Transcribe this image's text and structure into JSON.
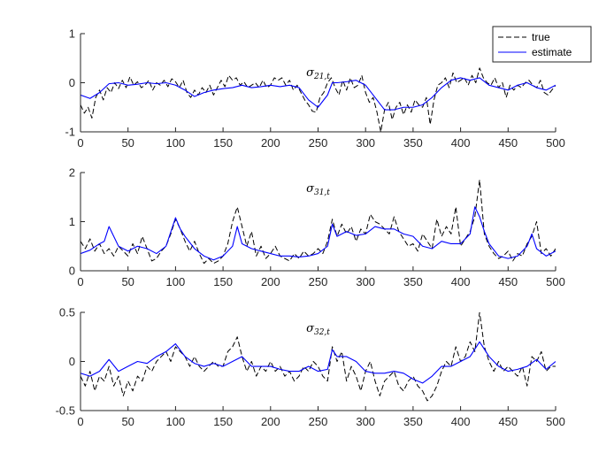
{
  "chart_data": [
    {
      "type": "line",
      "title": "σ21,t",
      "title_main": "σ",
      "title_sub": "21,t",
      "xlim": [
        0,
        500
      ],
      "ylim": [
        -1,
        1
      ],
      "xticks": [
        "0",
        "50",
        "100",
        "150",
        "200",
        "250",
        "300",
        "350",
        "400",
        "450",
        "500"
      ],
      "yticks": [
        "-1",
        "0",
        "1"
      ],
      "legend": {
        "position": "top-right",
        "entries": [
          "true",
          "estimate"
        ]
      },
      "series": [
        {
          "name": "true",
          "color": "#000000",
          "style": "dashed",
          "x": [
            0,
            4,
            8,
            12,
            16,
            20,
            24,
            28,
            32,
            36,
            40,
            44,
            48,
            52,
            56,
            60,
            64,
            68,
            72,
            76,
            80,
            84,
            88,
            92,
            96,
            100,
            104,
            108,
            112,
            116,
            120,
            124,
            128,
            132,
            136,
            140,
            144,
            148,
            152,
            156,
            160,
            164,
            168,
            172,
            176,
            180,
            184,
            188,
            192,
            196,
            200,
            204,
            208,
            212,
            216,
            220,
            224,
            228,
            232,
            236,
            240,
            244,
            248,
            252,
            256,
            260,
            264,
            268,
            272,
            276,
            280,
            284,
            288,
            292,
            296,
            300,
            304,
            308,
            312,
            316,
            320,
            324,
            328,
            332,
            336,
            340,
            344,
            348,
            352,
            356,
            360,
            364,
            368,
            372,
            376,
            380,
            384,
            388,
            392,
            396,
            400,
            404,
            408,
            412,
            416,
            420,
            424,
            428,
            432,
            436,
            440,
            444,
            448,
            452,
            456,
            460,
            464,
            468,
            472,
            476,
            480,
            484,
            488,
            492,
            496,
            500
          ],
          "y": [
            -0.45,
            -0.62,
            -0.5,
            -0.72,
            -0.3,
            -0.15,
            -0.35,
            -0.1,
            -0.2,
            0.0,
            -0.12,
            0.05,
            -0.1,
            0.12,
            -0.05,
            0.02,
            -0.1,
            -0.05,
            0.05,
            -0.15,
            0.0,
            -0.05,
            0.05,
            -0.08,
            0.08,
            0.02,
            -0.1,
            0.05,
            -0.2,
            -0.3,
            -0.15,
            -0.25,
            -0.1,
            -0.2,
            -0.05,
            -0.25,
            -0.1,
            0.05,
            -0.08,
            0.15,
            0.05,
            0.1,
            -0.05,
            0.02,
            -0.1,
            -0.05,
            0.0,
            -0.1,
            0.05,
            -0.1,
            -0.05,
            0.1,
            0.05,
            0.1,
            -0.05,
            0.05,
            -0.15,
            -0.05,
            -0.2,
            -0.35,
            -0.45,
            -0.58,
            -0.6,
            -0.3,
            -0.2,
            0.0,
            0.1,
            -0.1,
            -0.25,
            0.05,
            -0.15,
            0.1,
            -0.1,
            -0.05,
            0.15,
            -0.2,
            -0.4,
            -0.3,
            -0.6,
            -1.0,
            -0.55,
            -0.4,
            -0.75,
            -0.5,
            -0.4,
            -0.65,
            -0.45,
            -0.6,
            -0.35,
            -0.45,
            -0.5,
            -0.3,
            -0.85,
            -0.35,
            -0.05,
            0.0,
            0.1,
            -0.1,
            0.2,
            0.0,
            0.05,
            0.1,
            -0.05,
            0.15,
            0.0,
            0.3,
            0.1,
            0.0,
            -0.05,
            0.1,
            -0.1,
            0.0,
            -0.3,
            -0.05,
            -0.15,
            -0.05,
            -0.1,
            0.0,
            0.05,
            -0.05,
            -0.1,
            0.05,
            -0.2,
            -0.25,
            -0.15,
            -0.05
          ]
        },
        {
          "name": "estimate",
          "color": "#0000ff",
          "style": "solid",
          "x": [
            0,
            10,
            20,
            30,
            40,
            50,
            60,
            70,
            80,
            90,
            100,
            110,
            120,
            130,
            140,
            150,
            160,
            170,
            180,
            190,
            200,
            210,
            220,
            230,
            240,
            250,
            260,
            265,
            270,
            280,
            290,
            300,
            310,
            320,
            330,
            340,
            350,
            360,
            370,
            380,
            390,
            400,
            410,
            420,
            430,
            440,
            450,
            460,
            470,
            480,
            490,
            500
          ],
          "y": [
            -0.25,
            -0.32,
            -0.2,
            -0.02,
            0.0,
            -0.05,
            -0.03,
            0.0,
            -0.02,
            0.0,
            -0.05,
            -0.15,
            -0.28,
            -0.2,
            -0.15,
            -0.12,
            -0.1,
            -0.05,
            -0.1,
            -0.08,
            -0.05,
            -0.08,
            -0.05,
            -0.1,
            -0.35,
            -0.5,
            -0.25,
            0.0,
            0.0,
            0.02,
            0.05,
            -0.05,
            -0.3,
            -0.55,
            -0.55,
            -0.5,
            -0.5,
            -0.45,
            -0.3,
            -0.1,
            0.05,
            0.1,
            0.05,
            0.1,
            -0.05,
            -0.1,
            -0.15,
            -0.05,
            0.0,
            -0.1,
            -0.15,
            -0.05
          ]
        }
      ]
    },
    {
      "type": "line",
      "title": "σ31,t",
      "title_main": "σ",
      "title_sub": "31,t",
      "xlim": [
        0,
        500
      ],
      "ylim": [
        0,
        2
      ],
      "xticks": [
        "0",
        "50",
        "100",
        "150",
        "200",
        "250",
        "300",
        "350",
        "400",
        "450",
        "500"
      ],
      "yticks": [
        "0",
        "1",
        "2"
      ],
      "series": [
        {
          "name": "true",
          "color": "#000000",
          "style": "dashed",
          "x": [
            0,
            5,
            10,
            15,
            20,
            25,
            30,
            35,
            40,
            45,
            50,
            55,
            60,
            65,
            70,
            75,
            80,
            85,
            90,
            95,
            100,
            105,
            110,
            115,
            120,
            125,
            130,
            135,
            140,
            145,
            150,
            155,
            160,
            165,
            170,
            175,
            180,
            185,
            190,
            195,
            200,
            205,
            210,
            215,
            220,
            225,
            230,
            235,
            240,
            245,
            250,
            255,
            260,
            265,
            270,
            275,
            280,
            285,
            290,
            295,
            300,
            305,
            310,
            315,
            320,
            325,
            330,
            335,
            340,
            345,
            350,
            355,
            360,
            365,
            370,
            375,
            380,
            385,
            390,
            395,
            400,
            405,
            410,
            415,
            420,
            425,
            430,
            435,
            440,
            445,
            450,
            455,
            460,
            465,
            470,
            475,
            480,
            485,
            490,
            495,
            500
          ],
          "y": [
            0.6,
            0.45,
            0.65,
            0.4,
            0.55,
            0.35,
            0.45,
            0.3,
            0.5,
            0.4,
            0.3,
            0.55,
            0.35,
            0.7,
            0.45,
            0.2,
            0.25,
            0.4,
            0.5,
            0.75,
            1.05,
            0.85,
            0.6,
            0.4,
            0.6,
            0.35,
            0.15,
            0.25,
            0.15,
            0.2,
            0.3,
            0.55,
            1.0,
            1.3,
            0.9,
            0.5,
            0.8,
            0.3,
            0.5,
            0.25,
            0.35,
            0.5,
            0.3,
            0.25,
            0.2,
            0.35,
            0.25,
            0.4,
            0.3,
            0.35,
            0.45,
            0.35,
            0.6,
            1.05,
            0.7,
            0.95,
            0.75,
            0.9,
            0.6,
            0.85,
            0.75,
            1.15,
            1.0,
            0.95,
            0.85,
            0.75,
            1.1,
            0.8,
            0.65,
            0.5,
            0.55,
            0.4,
            0.75,
            0.6,
            0.45,
            1.05,
            0.7,
            0.9,
            0.75,
            1.3,
            0.5,
            0.65,
            0.8,
            1.1,
            1.85,
            0.75,
            0.5,
            0.35,
            0.25,
            0.3,
            0.4,
            0.2,
            0.35,
            0.3,
            0.55,
            0.7,
            1.0,
            0.35,
            0.45,
            0.3,
            0.45
          ]
        },
        {
          "name": "estimate",
          "color": "#0000ff",
          "style": "solid",
          "x": [
            0,
            10,
            20,
            25,
            30,
            40,
            50,
            60,
            70,
            80,
            90,
            100,
            105,
            110,
            120,
            130,
            140,
            150,
            160,
            165,
            170,
            180,
            190,
            200,
            210,
            220,
            230,
            240,
            250,
            260,
            265,
            270,
            280,
            290,
            300,
            310,
            320,
            330,
            340,
            350,
            360,
            370,
            380,
            390,
            400,
            410,
            415,
            420,
            425,
            430,
            440,
            450,
            460,
            470,
            475,
            480,
            490,
            500
          ],
          "y": [
            0.35,
            0.42,
            0.55,
            0.6,
            0.9,
            0.5,
            0.4,
            0.5,
            0.45,
            0.35,
            0.5,
            1.08,
            0.85,
            0.7,
            0.45,
            0.3,
            0.22,
            0.3,
            0.5,
            0.9,
            0.55,
            0.45,
            0.4,
            0.35,
            0.3,
            0.3,
            0.28,
            0.3,
            0.35,
            0.5,
            0.95,
            0.7,
            0.8,
            0.72,
            0.75,
            0.9,
            0.85,
            0.85,
            0.75,
            0.7,
            0.5,
            0.45,
            0.6,
            0.55,
            0.55,
            0.75,
            1.3,
            1.1,
            0.8,
            0.55,
            0.3,
            0.25,
            0.3,
            0.5,
            0.75,
            0.45,
            0.3,
            0.4
          ]
        }
      ]
    },
    {
      "type": "line",
      "title": "σ32,t",
      "title_main": "σ",
      "title_sub": "32,t",
      "xlim": [
        0,
        500
      ],
      "ylim": [
        -0.5,
        0.5
      ],
      "xticks": [
        "0",
        "50",
        "100",
        "150",
        "200",
        "250",
        "300",
        "350",
        "400",
        "450",
        "500"
      ],
      "yticks": [
        "-0.5",
        "0",
        "0.5"
      ],
      "series": [
        {
          "name": "true",
          "color": "#000000",
          "style": "dashed",
          "x": [
            0,
            5,
            10,
            15,
            20,
            25,
            30,
            35,
            40,
            45,
            50,
            55,
            60,
            65,
            70,
            75,
            80,
            85,
            90,
            95,
            100,
            105,
            110,
            115,
            120,
            125,
            130,
            135,
            140,
            145,
            150,
            155,
            160,
            165,
            170,
            175,
            180,
            185,
            190,
            195,
            200,
            205,
            210,
            215,
            220,
            225,
            230,
            235,
            240,
            245,
            250,
            255,
            260,
            265,
            270,
            275,
            280,
            285,
            290,
            295,
            300,
            305,
            310,
            315,
            320,
            325,
            330,
            335,
            340,
            345,
            350,
            355,
            360,
            365,
            370,
            375,
            380,
            385,
            390,
            395,
            400,
            405,
            410,
            415,
            420,
            425,
            430,
            435,
            440,
            445,
            450,
            455,
            460,
            465,
            470,
            475,
            480,
            485,
            490,
            495,
            500
          ],
          "y": [
            -0.15,
            -0.25,
            -0.1,
            -0.3,
            -0.15,
            -0.2,
            -0.05,
            -0.25,
            -0.15,
            -0.35,
            -0.2,
            -0.3,
            -0.15,
            -0.2,
            -0.05,
            -0.1,
            0.0,
            0.05,
            0.1,
            0.0,
            0.15,
            0.1,
            0.05,
            -0.05,
            0.05,
            -0.05,
            -0.1,
            -0.05,
            0.0,
            -0.05,
            -0.05,
            0.1,
            0.15,
            0.25,
            0.05,
            -0.1,
            0.0,
            -0.15,
            -0.05,
            -0.1,
            0.0,
            -0.1,
            -0.05,
            -0.15,
            -0.1,
            -0.2,
            -0.15,
            -0.05,
            -0.1,
            0.0,
            -0.05,
            -0.15,
            -0.2,
            0.15,
            0.0,
            0.1,
            -0.2,
            -0.05,
            -0.15,
            -0.3,
            -0.1,
            0.0,
            -0.2,
            -0.35,
            -0.2,
            -0.15,
            -0.1,
            -0.25,
            -0.3,
            -0.2,
            -0.15,
            -0.25,
            -0.3,
            -0.4,
            -0.35,
            -0.25,
            -0.1,
            0.0,
            -0.05,
            0.15,
            0.0,
            0.05,
            0.2,
            0.1,
            0.5,
            0.15,
            0.0,
            -0.1,
            0.0,
            -0.1,
            -0.05,
            -0.1,
            -0.15,
            -0.05,
            -0.25,
            0.05,
            0.0,
            0.1,
            -0.1,
            -0.05,
            -0.05
          ]
        },
        {
          "name": "estimate",
          "color": "#0000ff",
          "style": "solid",
          "x": [
            0,
            10,
            20,
            30,
            40,
            50,
            60,
            70,
            80,
            90,
            100,
            110,
            120,
            130,
            140,
            150,
            160,
            170,
            180,
            190,
            200,
            210,
            220,
            230,
            240,
            250,
            260,
            265,
            270,
            280,
            290,
            300,
            310,
            320,
            330,
            340,
            350,
            360,
            370,
            380,
            390,
            400,
            410,
            420,
            430,
            440,
            450,
            460,
            470,
            480,
            490,
            500
          ],
          "y": [
            -0.12,
            -0.15,
            -0.1,
            0.02,
            -0.1,
            -0.05,
            0.0,
            -0.02,
            0.05,
            0.1,
            0.18,
            0.05,
            -0.02,
            -0.05,
            -0.02,
            -0.05,
            0.0,
            0.05,
            -0.05,
            -0.05,
            -0.05,
            -0.08,
            -0.1,
            -0.1,
            -0.05,
            -0.1,
            -0.08,
            0.12,
            0.05,
            0.05,
            0.0,
            -0.1,
            -0.12,
            -0.12,
            -0.1,
            -0.12,
            -0.18,
            -0.22,
            -0.15,
            -0.05,
            -0.05,
            0.0,
            0.05,
            0.2,
            0.05,
            -0.05,
            -0.1,
            -0.08,
            -0.05,
            0.02,
            -0.08,
            0.0
          ]
        }
      ]
    }
  ]
}
